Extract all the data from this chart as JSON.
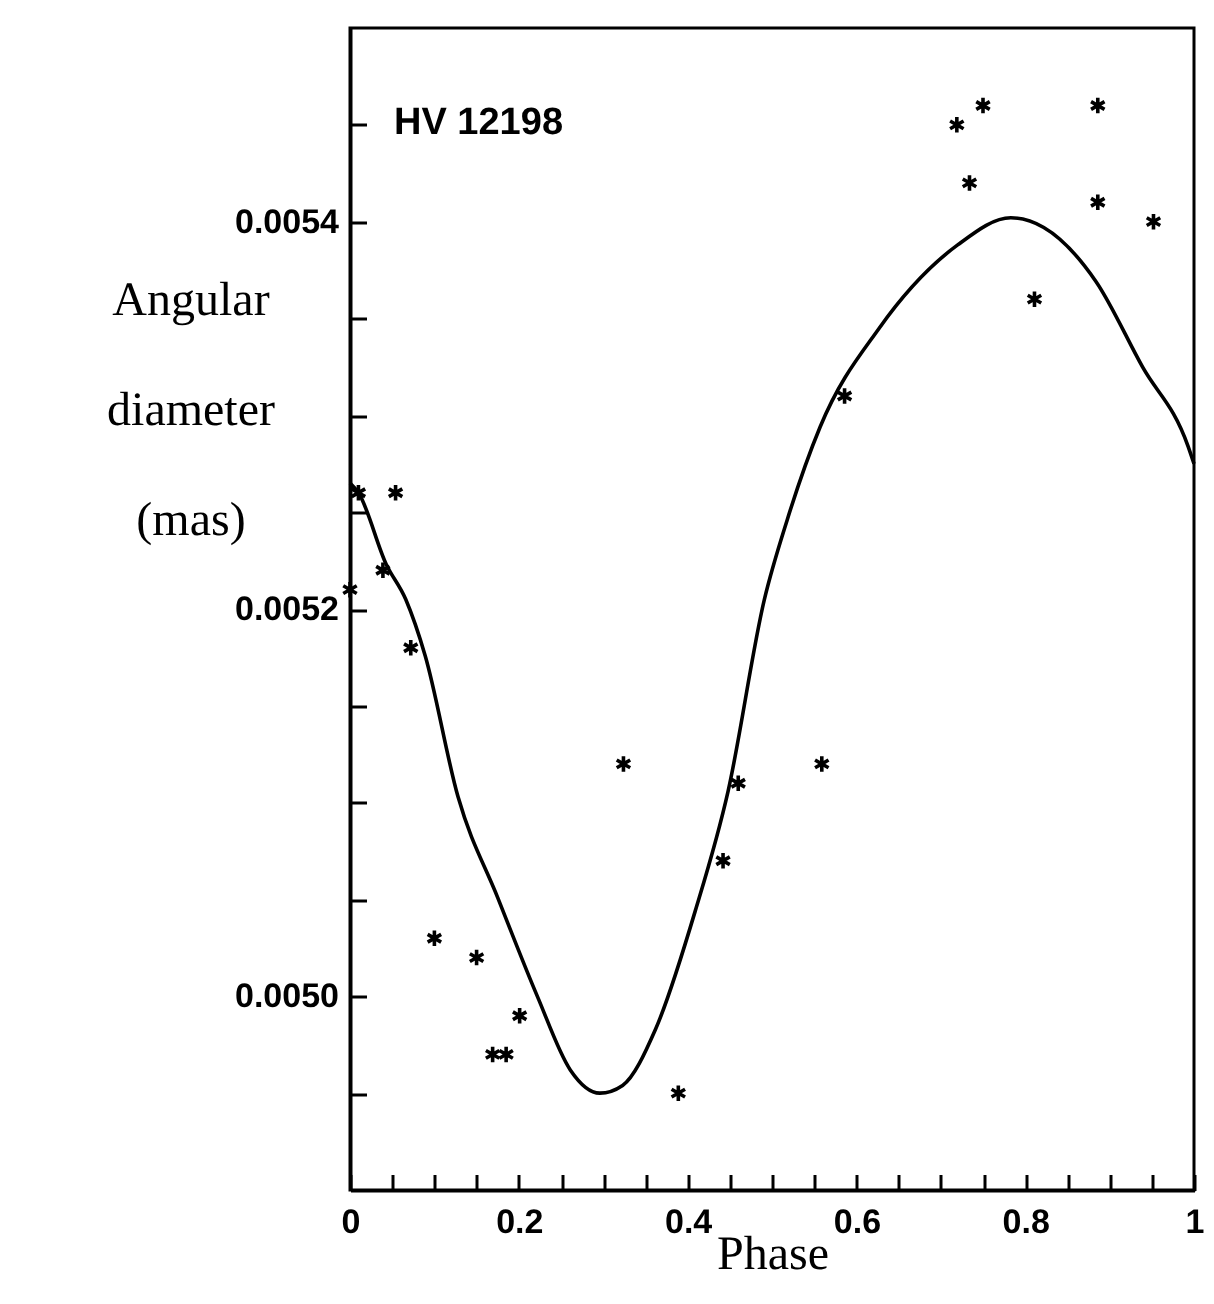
{
  "chart_data": {
    "type": "scatter",
    "xlabel": "Phase",
    "ylabel": "Angular diameter (mas)",
    "annotations": [
      "HV 12198"
    ],
    "xlim": [
      0,
      1
    ],
    "ylim": [
      0.0049,
      0.0055
    ],
    "xticks": [
      0,
      {
        "value": 0.05,
        "label": null
      },
      {
        "value": 0.1,
        "label": null
      },
      {
        "value": 0.15,
        "label": null
      },
      {
        "value": 0.2,
        "label": "0.2"
      },
      {
        "value": 0.25,
        "label": null
      },
      {
        "value": 0.3,
        "label": null
      },
      {
        "value": 0.35,
        "label": null
      },
      {
        "value": 0.4,
        "label": "0.4"
      },
      {
        "value": 0.45,
        "label": null
      },
      {
        "value": 0.5,
        "label": null
      },
      {
        "value": 0.55,
        "label": null
      },
      {
        "value": 0.6,
        "label": "0.6"
      },
      {
        "value": 0.65,
        "label": null
      },
      {
        "value": 0.7,
        "label": null
      },
      {
        "value": 0.75,
        "label": null
      },
      {
        "value": 0.8,
        "label": "0.8"
      },
      {
        "value": 0.85,
        "label": null
      },
      {
        "value": 0.9,
        "label": null
      },
      {
        "value": 0.95,
        "label": null
      },
      1
    ],
    "yticks": [
      {
        "value": 0.00495,
        "label": null
      },
      {
        "value": 0.005,
        "label": "0.0050"
      },
      {
        "value": 0.00505,
        "label": null
      },
      {
        "value": 0.0051,
        "label": null
      },
      {
        "value": 0.00515,
        "label": null
      },
      {
        "value": 0.0052,
        "label": "0.0052"
      },
      {
        "value": 0.00525,
        "label": null
      },
      {
        "value": 0.0053,
        "label": null
      },
      {
        "value": 0.00535,
        "label": null
      },
      {
        "value": 0.0054,
        "label": "0.0054"
      },
      {
        "value": 0.00545,
        "label": null
      }
    ],
    "grid": false,
    "marker": "cross",
    "series": [
      {
        "color": "#000000",
        "x": [
          0,
          0.01,
          0.054,
          0.039,
          0.072,
          0.1,
          0.15,
          0.169,
          0.185,
          0.201,
          0.324,
          0.389,
          0.442,
          0.46,
          0.559,
          0.586,
          0.719,
          0.734,
          0.75,
          0.811,
          0.886,
          0.886,
          0.952
        ],
        "values": [
          0.00521,
          0.00526,
          0.00526,
          0.00522,
          0.00518,
          0.00503,
          0.00502,
          0.00497,
          0.00497,
          0.00499,
          0.00512,
          0.00495,
          0.00507,
          0.00511,
          0.00512,
          0.00531,
          0.00545,
          0.00542,
          0.00546,
          0.00536,
          0.00546,
          0.00541,
          0.0054
        ]
      },
      {
        "type": "line",
        "color": "#000000",
        "marker": "none",
        "x": [
          0,
          0.01,
          0.043,
          0.066,
          0.089,
          0.128,
          0.175,
          0.222,
          0.261,
          0.296,
          0.323,
          0.362,
          0.409,
          0.448,
          0.491,
          0.518,
          0.557,
          0.627,
          0.72,
          0.783,
          0.822,
          0.884,
          0.939,
          0.993,
          1
        ],
        "values": [
          0.005265,
          0.00526,
          0.005223,
          0.005205,
          0.005176,
          0.005103,
          0.005051,
          0.005,
          0.004962,
          0.00495,
          0.004954,
          0.004983,
          0.005044,
          0.005106,
          0.005205,
          0.005246,
          0.005294,
          0.005345,
          0.005388,
          0.005402,
          0.005397,
          0.005369,
          0.005325,
          0.005284,
          0.005275
        ]
      }
    ]
  }
}
